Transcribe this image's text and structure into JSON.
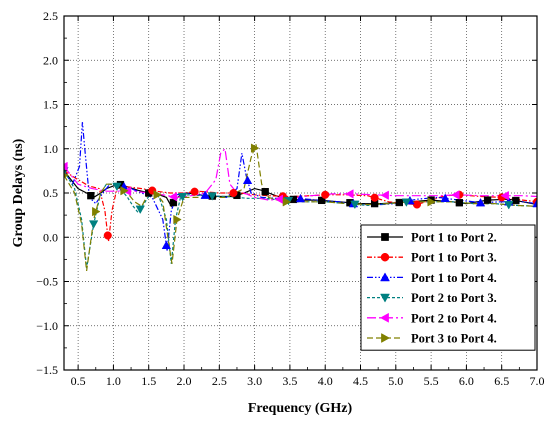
{
  "chart_data": {
    "type": "line",
    "xlabel": "Frequency (GHz)",
    "ylabel": "Group Delays (ns)",
    "xlim": [
      0.3,
      7.0
    ],
    "ylim": [
      -1.5,
      2.5
    ],
    "grid": "on (dotted)",
    "legend_position": "bottom-right",
    "x_ticks": [
      "0.5",
      "1.0",
      "1.5",
      "2.0",
      "2.5",
      "3.0",
      "3.5",
      "4.0",
      "4.5",
      "5.0",
      "5.5",
      "6.0",
      "6.5",
      "7.0"
    ],
    "y_ticks": [
      "2.5",
      "2.0",
      "1.5",
      "1.0",
      "0.5",
      "0.0",
      "−0.5",
      "−1.0",
      "−1.5"
    ],
    "series": [
      {
        "name": "Port 1 to Port 2.",
        "color": "#000000",
        "marker": "square",
        "dash": "",
        "x": [
          0.3,
          0.5,
          0.62,
          0.72,
          0.82,
          0.9,
          1.0,
          1.08,
          1.2,
          1.35,
          1.5,
          1.65,
          1.75,
          1.82,
          1.87,
          1.95,
          2.05,
          2.3,
          2.5,
          2.7,
          2.85,
          3.0,
          3.1,
          3.3,
          3.5,
          3.7,
          3.9,
          4.2,
          4.5,
          4.8,
          5.0,
          5.2,
          5.5,
          5.8,
          6.0,
          6.3,
          6.6,
          6.8,
          7.0
        ],
        "y": [
          0.75,
          0.55,
          0.5,
          0.45,
          0.5,
          0.55,
          0.58,
          0.6,
          0.57,
          0.53,
          0.5,
          0.48,
          0.45,
          0.35,
          0.42,
          0.48,
          0.5,
          0.47,
          0.46,
          0.46,
          0.5,
          0.55,
          0.53,
          0.47,
          0.43,
          0.42,
          0.42,
          0.4,
          0.38,
          0.38,
          0.39,
          0.4,
          0.42,
          0.4,
          0.38,
          0.42,
          0.43,
          0.4,
          0.37
        ]
      },
      {
        "name": "Port 1 to Port 3.",
        "color": "#ff0000",
        "marker": "circle",
        "dash": "5,2,1.5,2",
        "x": [
          0.3,
          0.5,
          0.65,
          0.8,
          0.88,
          0.93,
          0.98,
          1.05,
          1.2,
          1.4,
          1.6,
          1.8,
          2.0,
          2.2,
          2.5,
          2.8,
          3.0,
          3.2,
          3.5,
          3.8,
          4.0,
          4.3,
          4.6,
          4.9,
          5.1,
          5.3,
          5.5,
          5.7,
          5.9,
          6.2,
          6.5,
          6.8,
          7.0
        ],
        "y": [
          0.75,
          0.65,
          0.58,
          0.55,
          0.3,
          -0.05,
          0.3,
          0.55,
          0.57,
          0.55,
          0.52,
          0.5,
          0.5,
          0.52,
          0.5,
          0.5,
          0.48,
          0.47,
          0.46,
          0.47,
          0.48,
          0.48,
          0.47,
          0.4,
          0.38,
          0.37,
          0.42,
          0.47,
          0.48,
          0.46,
          0.45,
          0.42,
          0.4
        ]
      },
      {
        "name": "Port 1 to Port 4.",
        "color": "#0000ff",
        "marker": "triangle-up",
        "dash": "6,2,1.5,2,1.5,2",
        "x": [
          0.3,
          0.42,
          0.52,
          0.56,
          0.6,
          0.66,
          0.75,
          0.85,
          0.95,
          1.1,
          1.25,
          1.4,
          1.55,
          1.7,
          1.76,
          1.82,
          1.9,
          2.0,
          2.2,
          2.4,
          2.6,
          2.75,
          2.82,
          2.88,
          2.95,
          3.1,
          3.3,
          3.6,
          3.9,
          4.2,
          4.5,
          4.8,
          5.0,
          5.3,
          5.6,
          5.9,
          6.2,
          6.5,
          6.8,
          7.0
        ],
        "y": [
          0.75,
          0.6,
          0.8,
          1.3,
          0.95,
          0.45,
          0.38,
          0.5,
          0.6,
          0.58,
          0.55,
          0.5,
          0.45,
          0.2,
          -0.15,
          0.3,
          0.48,
          0.5,
          0.48,
          0.47,
          0.45,
          0.55,
          0.95,
          0.7,
          0.5,
          0.45,
          0.44,
          0.44,
          0.42,
          0.4,
          0.37,
          0.37,
          0.38,
          0.43,
          0.45,
          0.42,
          0.39,
          0.4,
          0.4,
          0.38
        ]
      },
      {
        "name": "Port 2 to Port 3.",
        "color": "#008080",
        "marker": "triangle-down",
        "dash": "3,2",
        "x": [
          0.3,
          0.45,
          0.55,
          0.62,
          0.72,
          0.82,
          0.9,
          1.0,
          1.1,
          1.2,
          1.28,
          1.35,
          1.45,
          1.55,
          1.65,
          1.75,
          1.82,
          1.88,
          1.95,
          2.05,
          2.3,
          2.6,
          2.9,
          3.1,
          3.4,
          3.7,
          4.0,
          4.3,
          4.6,
          4.9,
          5.2,
          5.5,
          5.8,
          6.1,
          6.4,
          6.7,
          7.0
        ],
        "y": [
          0.75,
          0.55,
          0.2,
          -0.35,
          0.15,
          0.5,
          0.6,
          0.6,
          0.55,
          0.45,
          0.35,
          0.28,
          0.4,
          0.52,
          0.45,
          0.2,
          -0.3,
          0.2,
          0.45,
          0.48,
          0.47,
          0.46,
          0.44,
          0.44,
          0.42,
          0.4,
          0.4,
          0.38,
          0.36,
          0.38,
          0.4,
          0.4,
          0.4,
          0.38,
          0.38,
          0.36,
          0.35
        ]
      },
      {
        "name": "Port 2 to Port 4.",
        "color": "#ff00ff",
        "marker": "triangle-left",
        "dash": "9,3,2,3",
        "x": [
          0.3,
          0.5,
          0.7,
          0.9,
          1.1,
          1.3,
          1.5,
          1.7,
          1.9,
          2.1,
          2.3,
          2.45,
          2.52,
          2.58,
          2.65,
          2.75,
          2.85,
          3.0,
          3.2,
          3.5,
          3.8,
          4.1,
          4.4,
          4.7,
          5.0,
          5.3,
          5.6,
          5.9,
          6.2,
          6.5,
          6.8,
          7.0
        ],
        "y": [
          0.8,
          0.6,
          0.55,
          0.52,
          0.52,
          0.52,
          0.5,
          0.48,
          0.45,
          0.47,
          0.5,
          0.65,
          0.95,
          1.0,
          0.6,
          0.5,
          0.5,
          0.45,
          0.42,
          0.44,
          0.47,
          0.49,
          0.49,
          0.48,
          0.47,
          0.47,
          0.47,
          0.48,
          0.47,
          0.47,
          0.47,
          0.46
        ]
      },
      {
        "name": "Port 3 to Port 4.",
        "color": "#808000",
        "marker": "triangle-right",
        "dash": "6,3",
        "x": [
          0.3,
          0.45,
          0.55,
          0.62,
          0.72,
          0.82,
          0.9,
          1.0,
          1.1,
          1.2,
          1.3,
          1.4,
          1.5,
          1.6,
          1.7,
          1.78,
          1.83,
          1.9,
          2.0,
          2.3,
          2.6,
          2.85,
          2.95,
          3.02,
          3.1,
          3.2,
          3.4,
          3.7,
          4.0,
          4.3,
          4.6,
          4.9,
          5.2,
          5.5,
          5.8,
          6.1,
          6.4,
          6.7,
          7.0
        ],
        "y": [
          0.7,
          0.5,
          0.15,
          -0.38,
          0.2,
          0.5,
          0.6,
          0.6,
          0.55,
          0.5,
          0.4,
          0.35,
          0.5,
          0.5,
          0.4,
          -0.05,
          -0.3,
          0.2,
          0.45,
          0.45,
          0.45,
          0.55,
          0.9,
          1.05,
          0.6,
          0.45,
          0.4,
          0.4,
          0.4,
          0.38,
          0.37,
          0.38,
          0.4,
          0.4,
          0.4,
          0.38,
          0.38,
          0.36,
          0.35
        ]
      }
    ]
  }
}
